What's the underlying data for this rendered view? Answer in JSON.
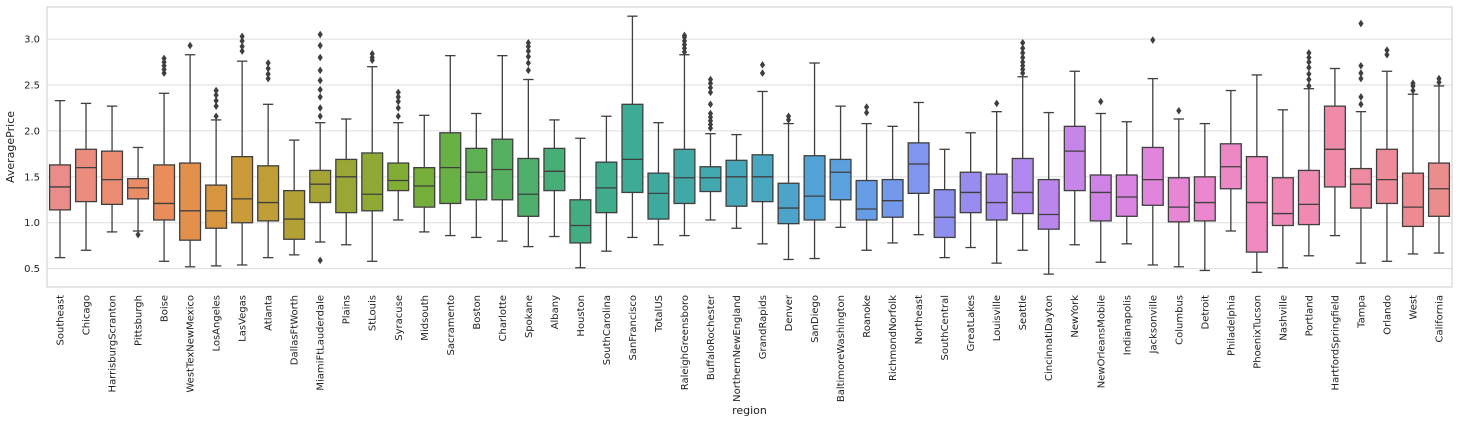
{
  "chart_data": {
    "type": "box",
    "xlabel": "region",
    "ylabel": "AveragePrice",
    "ylim": [
      0.3,
      3.35
    ],
    "yticks": [
      0.5,
      1.0,
      1.5,
      2.0,
      2.5,
      3.0
    ],
    "ytick_labels": [
      "0.5",
      "1.0",
      "1.5",
      "2.0",
      "2.5",
      "3.0"
    ],
    "grid": true,
    "regions": [
      {
        "name": "Southeast",
        "color": "#ea8c8a",
        "whisker_low": 0.62,
        "q1": 1.14,
        "median": 1.39,
        "q3": 1.63,
        "whisker_high": 2.33,
        "outliers": []
      },
      {
        "name": "Chicago",
        "color": "#ea8c7e",
        "whisker_low": 0.7,
        "q1": 1.23,
        "median": 1.6,
        "q3": 1.8,
        "whisker_high": 2.3,
        "outliers": []
      },
      {
        "name": "HarrisburgScranton",
        "color": "#ea8c72",
        "whisker_low": 0.9,
        "q1": 1.2,
        "median": 1.47,
        "q3": 1.78,
        "whisker_high": 2.27,
        "outliers": []
      },
      {
        "name": "Pittsburgh",
        "color": "#ea8c66",
        "whisker_low": 0.91,
        "q1": 1.26,
        "median": 1.38,
        "q3": 1.48,
        "whisker_high": 1.82,
        "outliers": [
          0.87
        ]
      },
      {
        "name": "Boise",
        "color": "#e98d5a",
        "whisker_low": 0.58,
        "q1": 1.03,
        "median": 1.21,
        "q3": 1.63,
        "whisker_high": 2.41,
        "outliers": [
          2.63,
          2.67,
          2.71,
          2.75,
          2.79
        ]
      },
      {
        "name": "WestTexNewMexico",
        "color": "#e3904c",
        "whisker_low": 0.52,
        "q1": 0.81,
        "median": 1.13,
        "q3": 1.65,
        "whisker_high": 2.83,
        "outliers": [
          2.93
        ]
      },
      {
        "name": "LosAngeles",
        "color": "#d8953f",
        "whisker_low": 0.53,
        "q1": 0.94,
        "median": 1.13,
        "q3": 1.41,
        "whisker_high": 2.12,
        "outliers": [
          2.16,
          2.27,
          2.33,
          2.39,
          2.44
        ]
      },
      {
        "name": "LasVegas",
        "color": "#cb9a39",
        "whisker_low": 0.54,
        "q1": 1.0,
        "median": 1.26,
        "q3": 1.72,
        "whisker_high": 2.76,
        "outliers": [
          2.87,
          2.92,
          2.98,
          3.03
        ]
      },
      {
        "name": "Atlanta",
        "color": "#bf9e37",
        "whisker_low": 0.62,
        "q1": 1.02,
        "median": 1.22,
        "q3": 1.62,
        "whisker_high": 2.29,
        "outliers": [
          2.57,
          2.62,
          2.68,
          2.74
        ]
      },
      {
        "name": "DallasFtWorth",
        "color": "#b3a136",
        "whisker_low": 0.65,
        "q1": 0.82,
        "median": 1.04,
        "q3": 1.35,
        "whisker_high": 1.9,
        "outliers": []
      },
      {
        "name": "MiamiFtLauderdale",
        "color": "#a6a435",
        "whisker_low": 0.79,
        "q1": 1.22,
        "median": 1.42,
        "q3": 1.57,
        "whisker_high": 2.09,
        "outliers": [
          0.59,
          2.16,
          2.25,
          2.37,
          2.45,
          2.55,
          2.66,
          2.8,
          2.93,
          3.05
        ]
      },
      {
        "name": "Plains",
        "color": "#9aa735",
        "whisker_low": 0.76,
        "q1": 1.11,
        "median": 1.5,
        "q3": 1.69,
        "whisker_high": 2.13,
        "outliers": []
      },
      {
        "name": "StLouis",
        "color": "#8eaa35",
        "whisker_low": 0.58,
        "q1": 1.13,
        "median": 1.31,
        "q3": 1.76,
        "whisker_high": 2.7,
        "outliers": [
          2.77,
          2.8,
          2.84
        ]
      },
      {
        "name": "Syracuse",
        "color": "#82ad35",
        "whisker_low": 1.03,
        "q1": 1.35,
        "median": 1.46,
        "q3": 1.65,
        "whisker_high": 2.09,
        "outliers": [
          2.16,
          2.25,
          2.32,
          2.37,
          2.42
        ]
      },
      {
        "name": "Midsouth",
        "color": "#75af3a",
        "whisker_low": 0.9,
        "q1": 1.17,
        "median": 1.4,
        "q3": 1.6,
        "whisker_high": 2.17,
        "outliers": []
      },
      {
        "name": "Sacramento",
        "color": "#69b045",
        "whisker_low": 0.86,
        "q1": 1.21,
        "median": 1.6,
        "q3": 1.98,
        "whisker_high": 2.82,
        "outliers": []
      },
      {
        "name": "Boston",
        "color": "#5eb152",
        "whisker_low": 0.84,
        "q1": 1.25,
        "median": 1.55,
        "q3": 1.81,
        "whisker_high": 2.19,
        "outliers": []
      },
      {
        "name": "Charlotte",
        "color": "#55b05f",
        "whisker_low": 0.8,
        "q1": 1.25,
        "median": 1.58,
        "q3": 1.91,
        "whisker_high": 2.82,
        "outliers": []
      },
      {
        "name": "Spokane",
        "color": "#4daf6b",
        "whisker_low": 0.74,
        "q1": 1.07,
        "median": 1.31,
        "q3": 1.7,
        "whisker_high": 2.56,
        "outliers": [
          2.66,
          2.74,
          2.81,
          2.87,
          2.92,
          2.96
        ]
      },
      {
        "name": "Albany",
        "color": "#47ae77",
        "whisker_low": 0.85,
        "q1": 1.35,
        "median": 1.56,
        "q3": 1.81,
        "whisker_high": 2.12,
        "outliers": []
      },
      {
        "name": "Houston",
        "color": "#42ad82",
        "whisker_low": 0.51,
        "q1": 0.78,
        "median": 0.97,
        "q3": 1.25,
        "whisker_high": 1.92,
        "outliers": []
      },
      {
        "name": "SouthCarolina",
        "color": "#3fac8c",
        "whisker_low": 0.69,
        "q1": 1.11,
        "median": 1.38,
        "q3": 1.66,
        "whisker_high": 2.16,
        "outliers": []
      },
      {
        "name": "SanFrancisco",
        "color": "#3dab95",
        "whisker_low": 0.84,
        "q1": 1.33,
        "median": 1.69,
        "q3": 2.29,
        "whisker_high": 3.25,
        "outliers": []
      },
      {
        "name": "TotalUS",
        "color": "#3eaa9e",
        "whisker_low": 0.76,
        "q1": 1.04,
        "median": 1.32,
        "q3": 1.54,
        "whisker_high": 2.09,
        "outliers": []
      },
      {
        "name": "RaleighGreensboro",
        "color": "#40a9a7",
        "whisker_low": 0.86,
        "q1": 1.21,
        "median": 1.49,
        "q3": 1.8,
        "whisker_high": 2.83,
        "outliers": [
          2.86,
          2.9,
          2.94,
          2.98,
          3.02,
          3.04
        ]
      },
      {
        "name": "BuffaloRochester",
        "color": "#42a8b0",
        "whisker_low": 1.03,
        "q1": 1.34,
        "median": 1.49,
        "q3": 1.61,
        "whisker_high": 1.97,
        "outliers": [
          2.03,
          2.07,
          2.11,
          2.15,
          2.19,
          2.29,
          2.42,
          2.47,
          2.52,
          2.56
        ]
      },
      {
        "name": "NorthernNewEngland",
        "color": "#45a7b8",
        "whisker_low": 0.94,
        "q1": 1.18,
        "median": 1.5,
        "q3": 1.68,
        "whisker_high": 1.96,
        "outliers": []
      },
      {
        "name": "GrandRapids",
        "color": "#48a6c1",
        "whisker_low": 0.77,
        "q1": 1.23,
        "median": 1.5,
        "q3": 1.74,
        "whisker_high": 2.43,
        "outliers": [
          2.63,
          2.72
        ]
      },
      {
        "name": "Denver",
        "color": "#4ca4cb",
        "whisker_low": 0.6,
        "q1": 0.99,
        "median": 1.16,
        "q3": 1.43,
        "whisker_high": 2.08,
        "outliers": [
          2.12,
          2.16
        ]
      },
      {
        "name": "SanDiego",
        "color": "#52a2d6",
        "whisker_low": 0.61,
        "q1": 1.03,
        "median": 1.29,
        "q3": 1.73,
        "whisker_high": 2.74,
        "outliers": []
      },
      {
        "name": "BaltimoreWashington",
        "color": "#5ba0df",
        "whisker_low": 0.95,
        "q1": 1.25,
        "median": 1.55,
        "q3": 1.69,
        "whisker_high": 2.27,
        "outliers": []
      },
      {
        "name": "Roanoke",
        "color": "#669de6",
        "whisker_low": 0.7,
        "q1": 1.03,
        "median": 1.15,
        "q3": 1.46,
        "whisker_high": 2.08,
        "outliers": [
          2.2,
          2.26
        ]
      },
      {
        "name": "RichmondNorfolk",
        "color": "#7399ea",
        "whisker_low": 0.78,
        "q1": 1.06,
        "median": 1.24,
        "q3": 1.47,
        "whisker_high": 2.05,
        "outliers": []
      },
      {
        "name": "Northeast",
        "color": "#8095ed",
        "whisker_low": 0.87,
        "q1": 1.32,
        "median": 1.64,
        "q3": 1.87,
        "whisker_high": 2.31,
        "outliers": []
      },
      {
        "name": "SouthCentral",
        "color": "#8d90ee",
        "whisker_low": 0.62,
        "q1": 0.84,
        "median": 1.06,
        "q3": 1.36,
        "whisker_high": 1.8,
        "outliers": []
      },
      {
        "name": "GreatLakes",
        "color": "#998cef",
        "whisker_low": 0.73,
        "q1": 1.11,
        "median": 1.33,
        "q3": 1.55,
        "whisker_high": 1.98,
        "outliers": []
      },
      {
        "name": "Louisville",
        "color": "#a589ef",
        "whisker_low": 0.56,
        "q1": 1.03,
        "median": 1.22,
        "q3": 1.53,
        "whisker_high": 2.21,
        "outliers": [
          2.3
        ]
      },
      {
        "name": "Seattle",
        "color": "#b087ee",
        "whisker_low": 0.7,
        "q1": 1.1,
        "median": 1.33,
        "q3": 1.7,
        "whisker_high": 2.59,
        "outliers": [
          2.63,
          2.67,
          2.71,
          2.75,
          2.8,
          2.85,
          2.9,
          2.96
        ]
      },
      {
        "name": "CincinnatiDayton",
        "color": "#bb86ec",
        "whisker_low": 0.44,
        "q1": 0.93,
        "median": 1.09,
        "q3": 1.47,
        "whisker_high": 2.2,
        "outliers": []
      },
      {
        "name": "NewYork",
        "color": "#c585e9",
        "whisker_low": 0.76,
        "q1": 1.35,
        "median": 1.78,
        "q3": 2.05,
        "whisker_high": 2.65,
        "outliers": []
      },
      {
        "name": "NewOrleansMobile",
        "color": "#cf84e5",
        "whisker_low": 0.57,
        "q1": 1.02,
        "median": 1.33,
        "q3": 1.52,
        "whisker_high": 2.19,
        "outliers": [
          2.32
        ]
      },
      {
        "name": "Indianapolis",
        "color": "#d884e0",
        "whisker_low": 0.77,
        "q1": 1.07,
        "median": 1.28,
        "q3": 1.52,
        "whisker_high": 2.1,
        "outliers": []
      },
      {
        "name": "Jacksonville",
        "color": "#e085db",
        "whisker_low": 0.54,
        "q1": 1.19,
        "median": 1.47,
        "q3": 1.82,
        "whisker_high": 2.57,
        "outliers": [
          2.99
        ]
      },
      {
        "name": "Columbus",
        "color": "#e686d5",
        "whisker_low": 0.52,
        "q1": 1.01,
        "median": 1.17,
        "q3": 1.49,
        "whisker_high": 2.13,
        "outliers": [
          2.22
        ]
      },
      {
        "name": "Detroit",
        "color": "#ea87ce",
        "whisker_low": 0.48,
        "q1": 1.02,
        "median": 1.22,
        "q3": 1.5,
        "whisker_high": 2.08,
        "outliers": []
      },
      {
        "name": "Philadelphia",
        "color": "#ed88c7",
        "whisker_low": 0.91,
        "q1": 1.37,
        "median": 1.61,
        "q3": 1.86,
        "whisker_high": 2.44,
        "outliers": []
      },
      {
        "name": "PhoenixTucson",
        "color": "#ef89c0",
        "whisker_low": 0.46,
        "q1": 0.68,
        "median": 1.22,
        "q3": 1.72,
        "whisker_high": 2.61,
        "outliers": []
      },
      {
        "name": "Nashville",
        "color": "#ef8ab8",
        "whisker_low": 0.51,
        "q1": 0.97,
        "median": 1.1,
        "q3": 1.49,
        "whisker_high": 2.23,
        "outliers": []
      },
      {
        "name": "Portland",
        "color": "#ef8ab0",
        "whisker_low": 0.64,
        "q1": 0.98,
        "median": 1.2,
        "q3": 1.57,
        "whisker_high": 2.46,
        "outliers": [
          2.49,
          2.56,
          2.62,
          2.69,
          2.75,
          2.8,
          2.85
        ]
      },
      {
        "name": "HartfordSpringfield",
        "color": "#ef8aa8",
        "whisker_low": 0.86,
        "q1": 1.39,
        "median": 1.8,
        "q3": 2.27,
        "whisker_high": 2.68,
        "outliers": []
      },
      {
        "name": "Tampa",
        "color": "#ee8ba0",
        "whisker_low": 0.56,
        "q1": 1.16,
        "median": 1.42,
        "q3": 1.59,
        "whisker_high": 2.21,
        "outliers": [
          2.29,
          2.37,
          2.57,
          2.63,
          2.71,
          3.17
        ]
      },
      {
        "name": "Orlando",
        "color": "#ed8b98",
        "whisker_low": 0.58,
        "q1": 1.21,
        "median": 1.47,
        "q3": 1.8,
        "whisker_high": 2.65,
        "outliers": [
          2.83,
          2.88
        ]
      },
      {
        "name": "West",
        "color": "#ec8b92",
        "whisker_low": 0.66,
        "q1": 0.96,
        "median": 1.17,
        "q3": 1.54,
        "whisker_high": 2.4,
        "outliers": [
          2.44,
          2.49,
          2.52
        ]
      },
      {
        "name": "California",
        "color": "#eb8c8d",
        "whisker_low": 0.67,
        "q1": 1.07,
        "median": 1.37,
        "q3": 1.65,
        "whisker_high": 2.49,
        "outliers": [
          2.53,
          2.57
        ]
      }
    ]
  }
}
